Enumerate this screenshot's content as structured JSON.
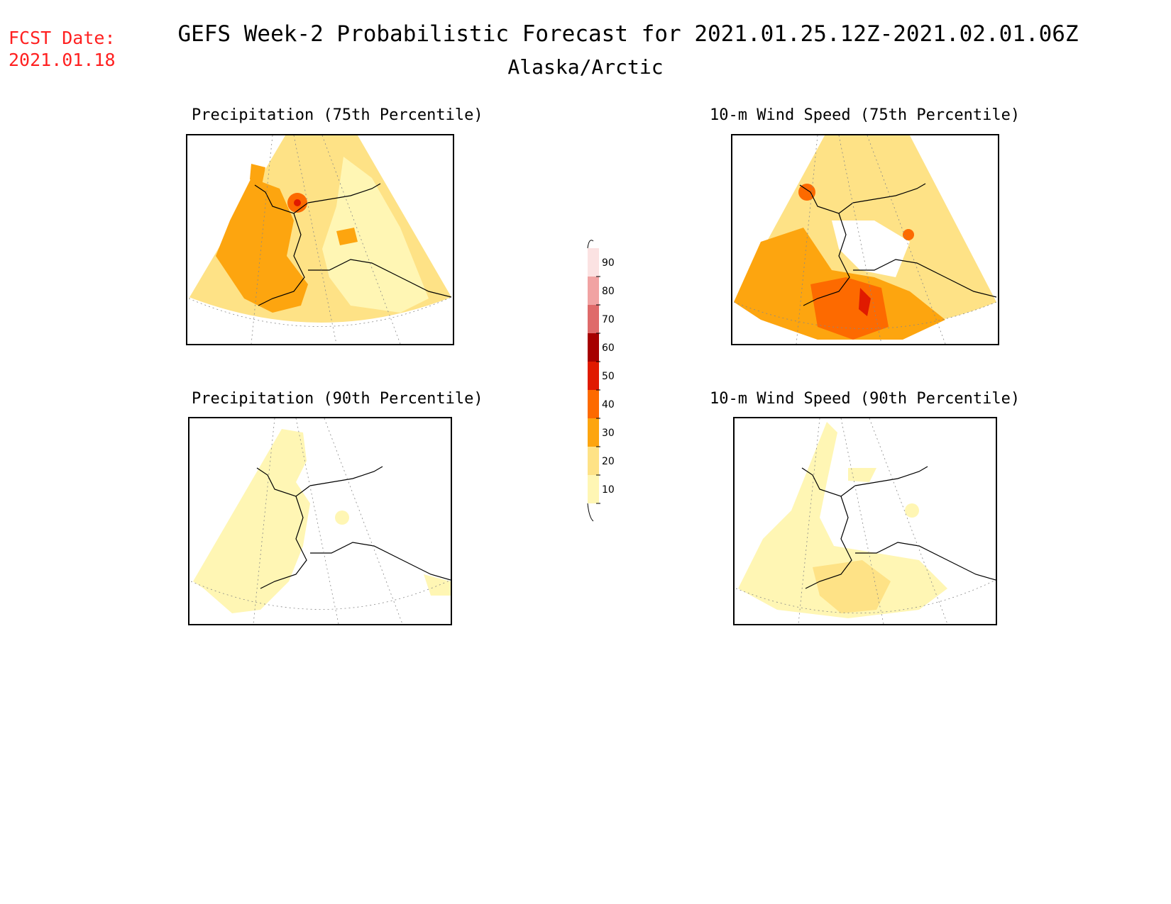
{
  "header": {
    "fcst_label": "FCST Date:",
    "fcst_date": "2021.01.18",
    "title": "GEFS Week-2 Probabilistic Forecast for 2021.01.25.12Z-2021.02.01.06Z",
    "subtitle": "Alaska/Arctic"
  },
  "panels": [
    {
      "id": "precip-75",
      "title": "Precipitation (75th Percentile)"
    },
    {
      "id": "wind-75",
      "title": "10-m Wind Speed (75th Percentile)"
    },
    {
      "id": "precip-90",
      "title": "Precipitation (90th Percentile)"
    },
    {
      "id": "wind-90",
      "title": "10-m Wind Speed (90th Percentile)"
    }
  ],
  "colorbar": {
    "levels": [
      "90",
      "80",
      "70",
      "60",
      "50",
      "40",
      "30",
      "20",
      "10"
    ],
    "colors": {
      "lt10": "#ffffff",
      "10-20": "#fff6b4",
      "20-30": "#fee286",
      "30-40": "#fda50f",
      "40-50": "#fd6a00",
      "50-60": "#e01a00",
      "60-70": "#a60000",
      "70-80": "#df6a6a",
      "80-90": "#f1a3a3",
      "gt90": "#fbe2e2"
    }
  }
}
